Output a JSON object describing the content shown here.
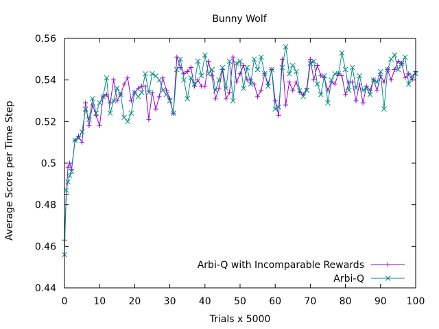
{
  "chart_data": {
    "type": "line",
    "title": "Bunny Wolf",
    "xlabel": "Trials x 5000",
    "ylabel": "Average Score per Time Step",
    "xlim": [
      0,
      100
    ],
    "ylim": [
      0.44,
      0.56
    ],
    "xticks": [
      0,
      10,
      20,
      30,
      40,
      50,
      60,
      70,
      80,
      90,
      100
    ],
    "yticks": [
      "0.44",
      "0.46",
      "0.48",
      "0.5",
      "0.52",
      "0.54",
      "0.56"
    ],
    "grid": false,
    "legend_position": "bottom-right",
    "series": [
      {
        "name": "Arbi-Q with Incomparable Rewards",
        "color": "#9400d3",
        "marker": "plus",
        "x": [
          0,
          0.5,
          1,
          1.5,
          2,
          3,
          4,
          5,
          6,
          7,
          8,
          9,
          10,
          11,
          12,
          13,
          14,
          15,
          16,
          17,
          18,
          19,
          20,
          21,
          22,
          23,
          24,
          25,
          26,
          27,
          28,
          29,
          30,
          31,
          32,
          33,
          34,
          35,
          36,
          37,
          38,
          39,
          40,
          41,
          42,
          43,
          44,
          45,
          46,
          47,
          48,
          49,
          50,
          51,
          52,
          53,
          54,
          55,
          56,
          57,
          58,
          59,
          60,
          61,
          62,
          63,
          64,
          65,
          66,
          67,
          68,
          69,
          70,
          71,
          72,
          73,
          74,
          75,
          76,
          77,
          78,
          79,
          80,
          81,
          82,
          83,
          84,
          85,
          86,
          87,
          88,
          89,
          90,
          91,
          92,
          93,
          94,
          95,
          96,
          97,
          98,
          99,
          100
        ],
        "y": [
          0.463,
          0.485,
          0.498,
          0.5,
          0.497,
          0.511,
          0.513,
          0.51,
          0.529,
          0.518,
          0.528,
          0.523,
          0.518,
          0.532,
          0.533,
          0.529,
          0.54,
          0.53,
          0.533,
          0.538,
          0.541,
          0.53,
          0.534,
          0.536,
          0.537,
          0.537,
          0.521,
          0.534,
          0.526,
          0.532,
          0.541,
          0.535,
          0.531,
          0.524,
          0.551,
          0.546,
          0.543,
          0.544,
          0.546,
          0.537,
          0.54,
          0.537,
          0.537,
          0.549,
          0.542,
          0.531,
          0.536,
          0.545,
          0.531,
          0.534,
          0.551,
          0.539,
          0.543,
          0.547,
          0.54,
          0.54,
          0.538,
          0.532,
          0.535,
          0.543,
          0.538,
          0.545,
          0.53,
          0.523,
          0.55,
          0.528,
          0.539,
          0.535,
          0.539,
          0.534,
          0.533,
          0.536,
          0.55,
          0.54,
          0.547,
          0.542,
          0.541,
          0.535,
          0.539,
          0.538,
          0.543,
          0.542,
          0.533,
          0.539,
          0.539,
          0.53,
          0.538,
          0.529,
          0.537,
          0.535,
          0.54,
          0.535,
          0.542,
          0.539,
          0.545,
          0.54,
          0.545,
          0.549,
          0.548,
          0.541,
          0.543,
          0.54,
          0.544
        ]
      },
      {
        "name": "Arbi-Q",
        "color": "#008b80",
        "marker": "cross",
        "x": [
          0,
          0.5,
          1,
          1.5,
          2,
          3,
          4,
          5,
          6,
          7,
          8,
          9,
          10,
          11,
          12,
          13,
          14,
          15,
          16,
          17,
          18,
          19,
          20,
          21,
          22,
          23,
          24,
          25,
          26,
          27,
          28,
          29,
          30,
          31,
          32,
          33,
          34,
          35,
          36,
          37,
          38,
          39,
          40,
          41,
          42,
          43,
          44,
          45,
          46,
          47,
          48,
          49,
          50,
          51,
          52,
          53,
          54,
          55,
          56,
          57,
          58,
          59,
          60,
          61,
          62,
          63,
          64,
          65,
          66,
          67,
          68,
          69,
          70,
          71,
          72,
          73,
          74,
          75,
          76,
          77,
          78,
          79,
          80,
          81,
          82,
          83,
          84,
          85,
          86,
          87,
          88,
          89,
          90,
          91,
          92,
          93,
          94,
          95,
          96,
          97,
          98,
          99,
          100
        ],
        "y": [
          0.456,
          0.487,
          0.491,
          0.494,
          0.496,
          0.511,
          0.512,
          0.515,
          0.526,
          0.521,
          0.531,
          0.524,
          0.529,
          0.532,
          0.541,
          0.524,
          0.53,
          0.536,
          0.533,
          0.522,
          0.52,
          0.524,
          0.534,
          0.532,
          0.534,
          0.543,
          0.534,
          0.543,
          0.542,
          0.54,
          0.535,
          0.533,
          0.53,
          0.524,
          0.545,
          0.55,
          0.54,
          0.531,
          0.541,
          0.538,
          0.549,
          0.542,
          0.552,
          0.543,
          0.545,
          0.535,
          0.54,
          0.546,
          0.536,
          0.549,
          0.53,
          0.548,
          0.549,
          0.536,
          0.546,
          0.538,
          0.55,
          0.545,
          0.551,
          0.543,
          0.537,
          0.545,
          0.526,
          0.527,
          0.546,
          0.556,
          0.543,
          0.547,
          0.544,
          0.535,
          0.532,
          0.535,
          0.548,
          0.549,
          0.538,
          0.533,
          0.542,
          0.529,
          0.54,
          0.543,
          0.543,
          0.553,
          0.545,
          0.535,
          0.546,
          0.536,
          0.542,
          0.535,
          0.536,
          0.533,
          0.54,
          0.539,
          0.544,
          0.526,
          0.545,
          0.55,
          0.552,
          0.545,
          0.548,
          0.551,
          0.538,
          0.542,
          0.543
        ]
      }
    ]
  }
}
